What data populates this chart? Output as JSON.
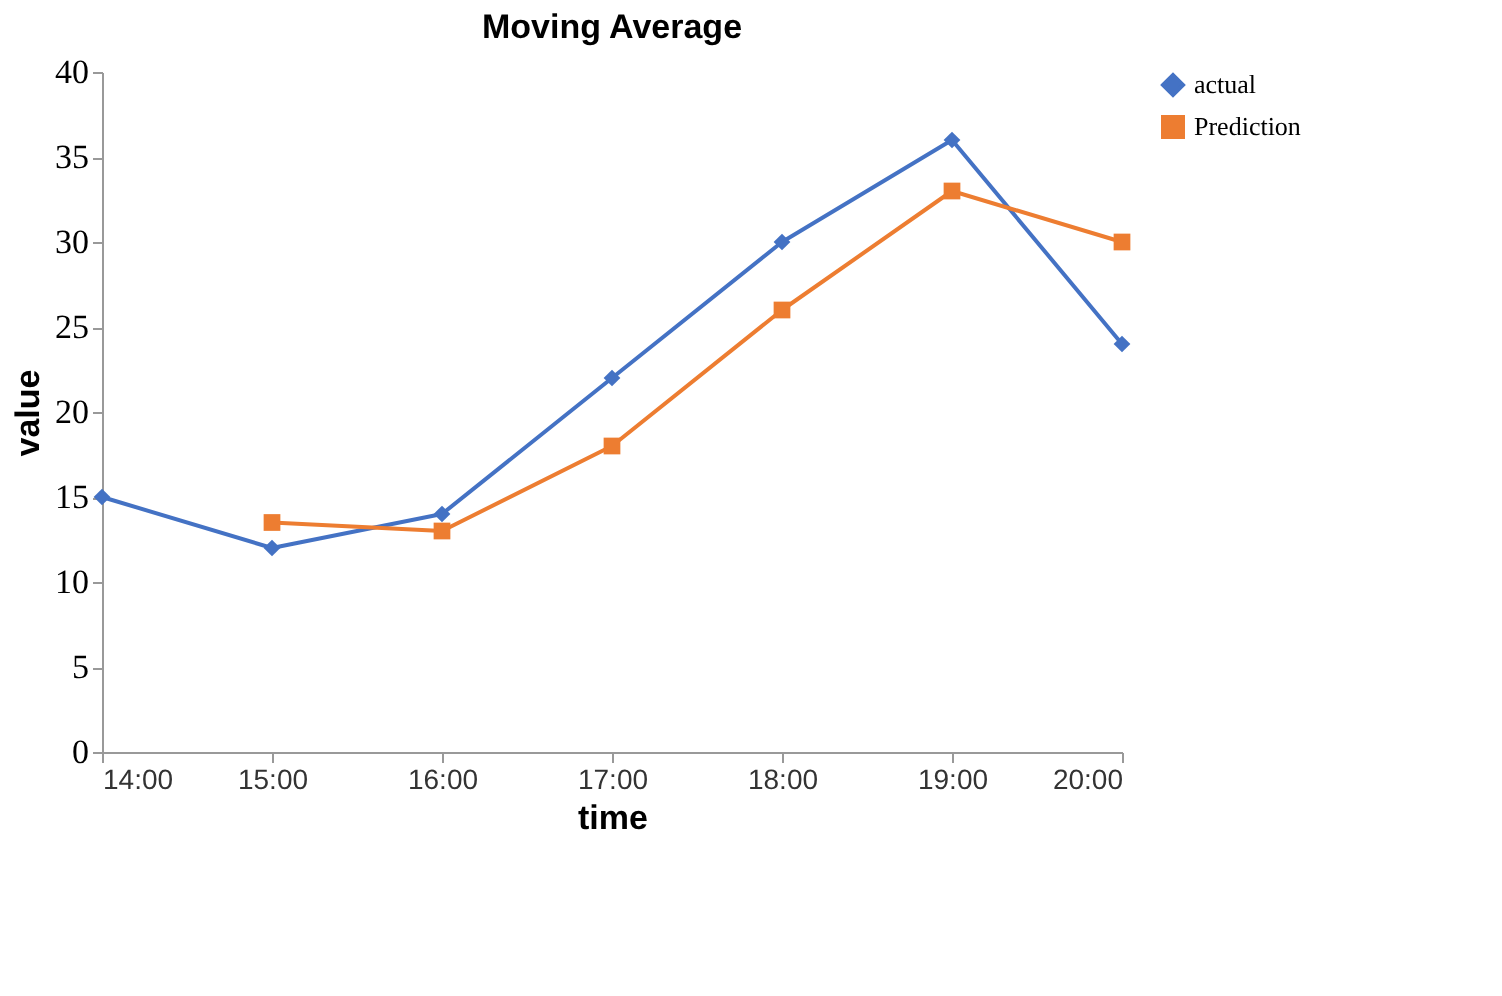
{
  "chart_data": {
    "type": "line",
    "title": "Moving Average",
    "xlabel": "time",
    "ylabel": "value",
    "xlim": [
      14,
      20
    ],
    "xticks": [
      {
        "value": 14,
        "label": "14:00"
      },
      {
        "value": 15,
        "label": "15:00"
      },
      {
        "value": 16,
        "label": "16:00"
      },
      {
        "value": 17,
        "label": "17:00"
      },
      {
        "value": 18,
        "label": "18:00"
      },
      {
        "value": 19,
        "label": "19:00"
      },
      {
        "value": 20,
        "label": "20:00"
      }
    ],
    "ylim": [
      0,
      40
    ],
    "yticks": [
      0,
      5,
      10,
      15,
      20,
      25,
      30,
      35,
      40
    ],
    "grid": false,
    "legend": "right",
    "line_style": "solid",
    "series": [
      {
        "name": "actual",
        "color": "#4472c4",
        "marker": "diamond",
        "x": [
          14,
          15,
          16,
          17,
          18,
          19,
          20
        ],
        "values": [
          15,
          12,
          14,
          22,
          30,
          36,
          24
        ]
      },
      {
        "name": "Prediction",
        "color": "#ed7d31",
        "marker": "square",
        "x": [
          15,
          16,
          17,
          18,
          19,
          20
        ],
        "values": [
          13.5,
          13,
          18,
          26,
          33,
          30
        ]
      }
    ]
  }
}
